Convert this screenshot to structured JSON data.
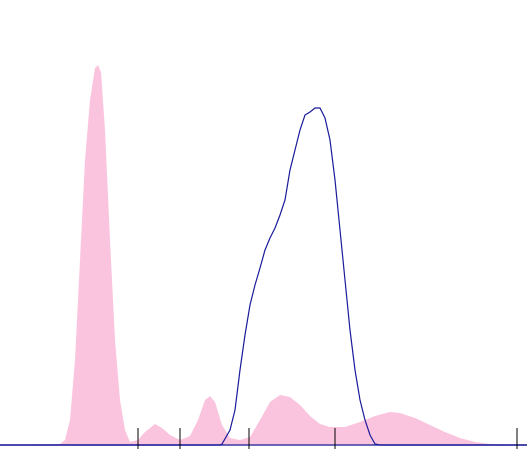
{
  "chart_data": {
    "type": "area",
    "xlim": [
      0,
      527
    ],
    "ylim": [
      0,
      100
    ],
    "xticks": [
      138,
      180,
      249,
      335,
      517
    ],
    "baseline_color": "#3a3aa0",
    "tick_color": "#000000",
    "series": [
      {
        "style": "area",
        "color": "#fbc4de",
        "x": [
          0,
          60,
          65,
          70,
          75,
          80,
          85,
          90,
          95,
          98,
          101,
          105,
          110,
          115,
          120,
          125,
          130,
          138,
          145,
          155,
          162,
          170,
          180,
          190,
          198,
          205,
          210,
          215,
          222,
          230,
          240,
          250,
          260,
          270,
          280,
          290,
          300,
          310,
          320,
          330,
          345,
          360,
          375,
          390,
          400,
          415,
          430,
          445,
          460,
          475,
          490,
          527
        ],
        "values": [
          0,
          0.25,
          1.25,
          6.25,
          21.25,
          46.25,
          71.25,
          86.25,
          94.25,
          95,
          93.25,
          78.75,
          51.25,
          26.25,
          11.25,
          3.75,
          0.75,
          1.25,
          3.25,
          5.25,
          4.25,
          2.5,
          1.25,
          2.25,
          6.25,
          11.25,
          12.25,
          10.75,
          5,
          1.75,
          1.25,
          2,
          6.25,
          10.75,
          12.5,
          12,
          10,
          7.25,
          5.25,
          4.5,
          4.5,
          5.75,
          7.25,
          8.25,
          8,
          6.75,
          5,
          3.25,
          1.75,
          0.75,
          0.25,
          0
        ]
      },
      {
        "style": "line",
        "color": "#1a1a9a",
        "x": [
          0,
          220,
          222,
          230,
          235,
          240,
          245,
          250,
          255,
          260,
          265,
          270,
          275,
          280,
          285,
          290,
          295,
          300,
          305,
          310,
          315,
          320,
          325,
          330,
          335,
          340,
          345,
          350,
          355,
          360,
          365,
          370,
          375,
          380,
          527
        ],
        "values": [
          0,
          0,
          0.25,
          3.75,
          8.75,
          18.75,
          27.5,
          35,
          40,
          44.25,
          48.75,
          51.75,
          54.25,
          57.5,
          61.25,
          68.75,
          73.75,
          78.75,
          82.5,
          83.25,
          84.25,
          84.25,
          81.75,
          76.25,
          66.25,
          53.75,
          41.25,
          28.75,
          18.75,
          11.25,
          6.25,
          2.5,
          0.25,
          0,
          0
        ]
      }
    ]
  }
}
